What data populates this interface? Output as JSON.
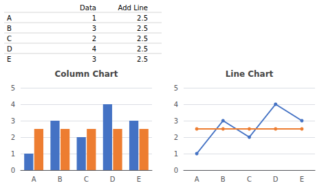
{
  "chart_data": [
    {
      "type": "table",
      "header": [
        null,
        "Data",
        "Add Line"
      ],
      "rows": [
        [
          "A",
          "1",
          "2.5"
        ],
        [
          "B",
          "3",
          "2.5"
        ],
        [
          "C",
          "2",
          "2.5"
        ],
        [
          "D",
          "4",
          "2.5"
        ],
        [
          "E",
          "3",
          "2.5"
        ]
      ]
    },
    {
      "type": "bar",
      "title": "Column Chart",
      "categories": [
        "A",
        "B",
        "C",
        "D",
        "E"
      ],
      "series": [
        {
          "color": "#4472C4",
          "values": [
            1,
            3,
            2,
            4,
            3
          ]
        },
        {
          "color": "#ED7D31",
          "values": [
            2.5,
            2.5,
            2.5,
            2.5,
            2.5
          ]
        }
      ],
      "ylim": [
        0,
        5
      ],
      "yticks": [
        0,
        1,
        2,
        3,
        4,
        5
      ],
      "grid": true
    },
    {
      "type": "line",
      "title": "Line Chart",
      "categories": [
        "A",
        "B",
        "C",
        "D",
        "E"
      ],
      "series": [
        {
          "color": "#4472C4",
          "values": [
            1,
            3,
            2,
            4,
            3
          ]
        },
        {
          "color": "#ED7D31",
          "values": [
            2.5,
            2.5,
            2.5,
            2.5,
            2.5
          ]
        }
      ],
      "ylim": [
        0,
        5
      ],
      "yticks": [
        0,
        1,
        2,
        3,
        4,
        5
      ],
      "grid": true,
      "marker": "circle"
    }
  ]
}
